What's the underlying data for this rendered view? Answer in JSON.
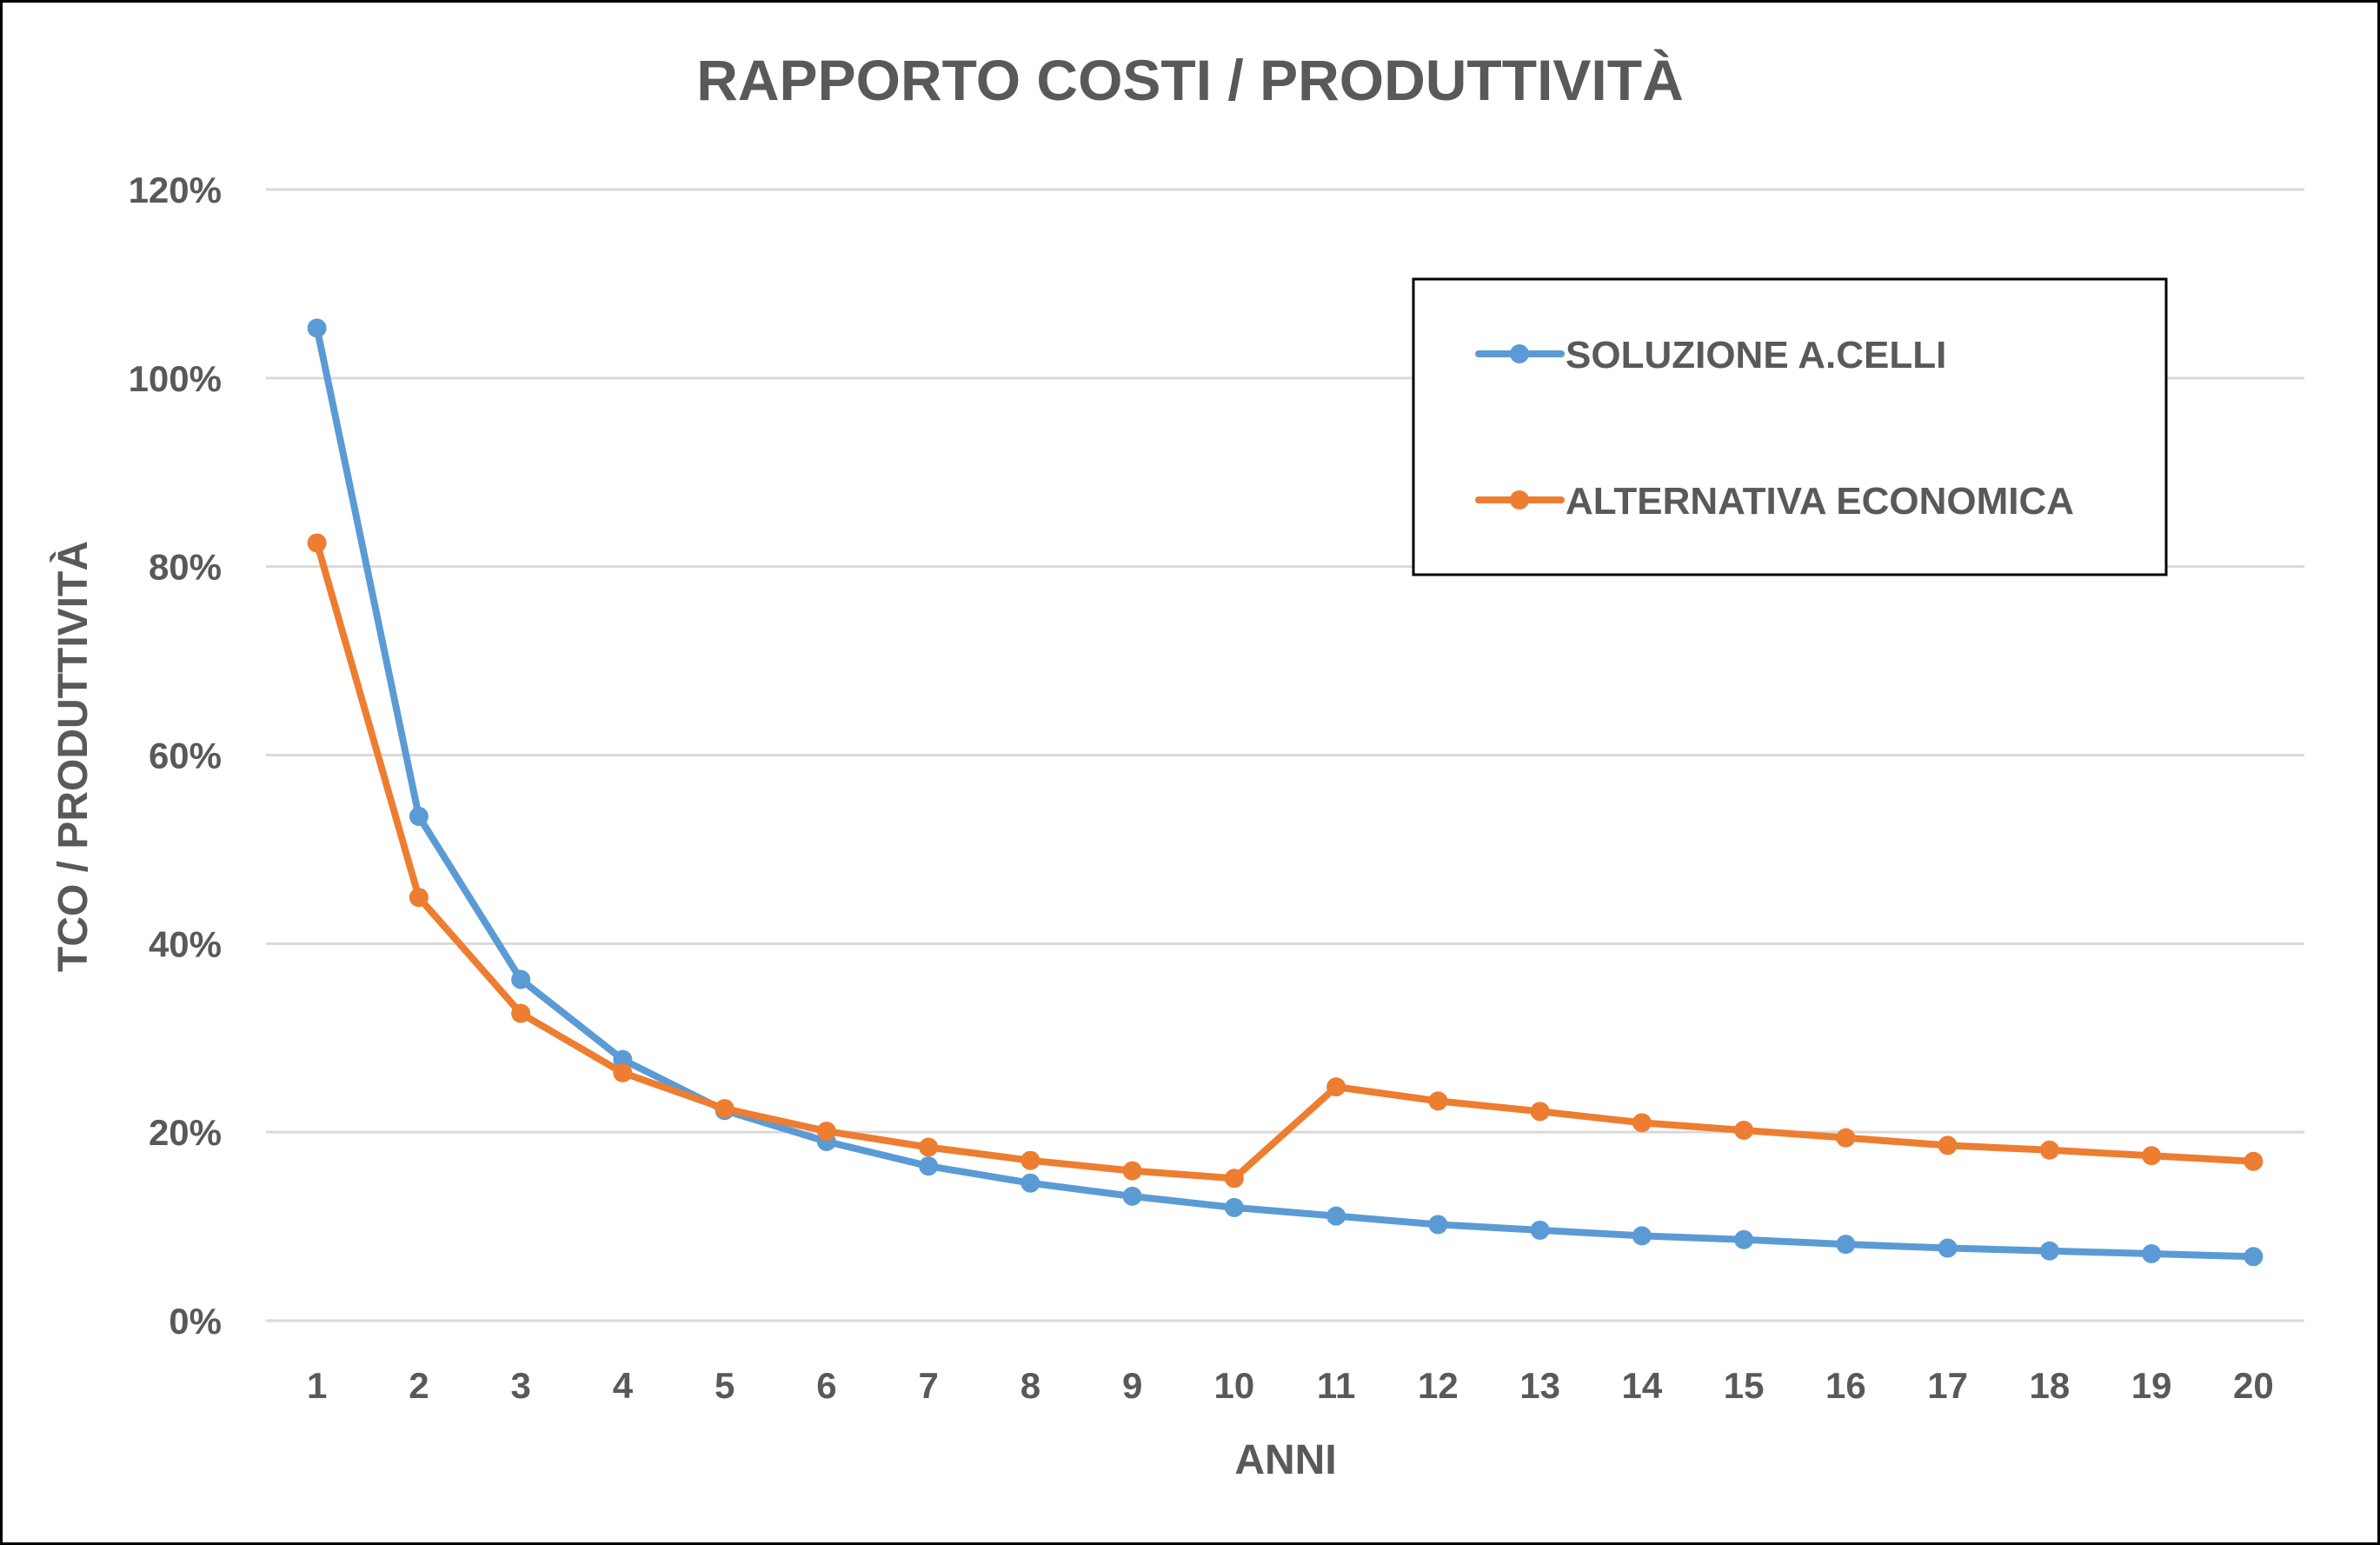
{
  "chart_data": {
    "type": "line",
    "title": "RAPPORTO COSTI / PRODUTTIVITÀ",
    "xlabel": "ANNI",
    "ylabel": "TCO / PRODUTTIVITÀ",
    "categories": [
      "1",
      "2",
      "3",
      "4",
      "5",
      "6",
      "7",
      "8",
      "9",
      "10",
      "11",
      "12",
      "13",
      "14",
      "15",
      "16",
      "17",
      "18",
      "19",
      "20"
    ],
    "y_ticks": [
      "0%",
      "20%",
      "40%",
      "60%",
      "80%",
      "100%",
      "120%"
    ],
    "ylim": [
      0,
      120
    ],
    "y_unit": "%",
    "grid": true,
    "legend_position": "upper-right (inside plot, boxed)",
    "series": [
      {
        "name": "SOLUZIONE A.CELLI",
        "color": "#5B9BD5",
        "marker": "circle",
        "values": [
          105.3,
          53.5,
          36.2,
          27.7,
          22.3,
          19.0,
          16.4,
          14.6,
          13.2,
          12.0,
          11.1,
          10.2,
          9.6,
          9.0,
          8.6,
          8.1,
          7.7,
          7.4,
          7.1,
          6.8
        ]
      },
      {
        "name": "ALTERNATIVA ECONOMICA",
        "color": "#ED7D31",
        "marker": "circle",
        "values": [
          82.5,
          44.9,
          32.6,
          26.3,
          22.5,
          20.1,
          18.4,
          17.0,
          15.9,
          15.1,
          24.8,
          23.3,
          22.2,
          21.0,
          20.2,
          19.4,
          18.6,
          18.1,
          17.5,
          16.9
        ]
      }
    ]
  },
  "style": {
    "text_color": "#595959",
    "grid_color": "#D9D9D9",
    "border_color": "#000000",
    "background": "#FFFFFF"
  }
}
